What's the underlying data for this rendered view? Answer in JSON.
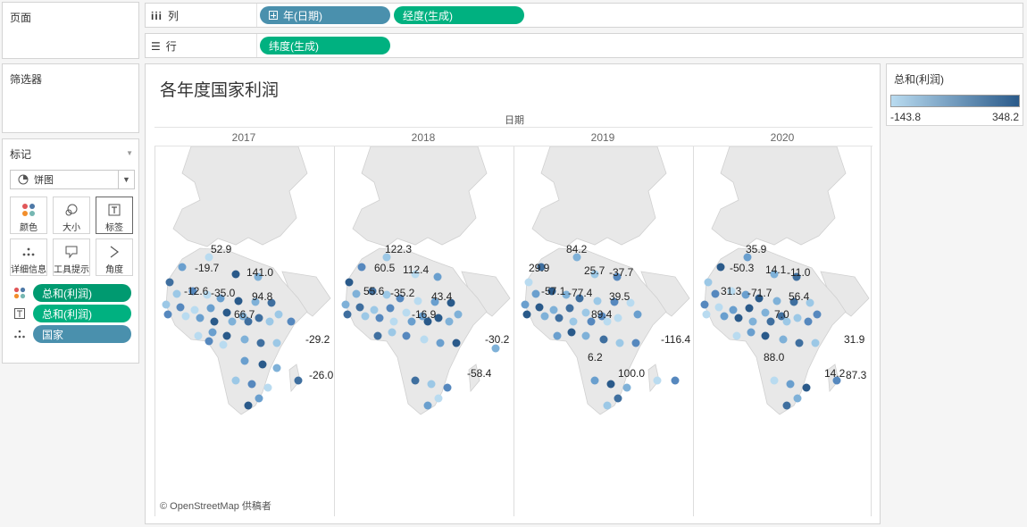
{
  "left": {
    "pages_title": "页面",
    "filters_title": "筛选器",
    "marks_title": "标记",
    "mark_type": "饼图",
    "buttons": [
      {
        "id": "color",
        "label": "颜色",
        "icon": "color-dots-icon"
      },
      {
        "id": "size",
        "label": "大小",
        "icon": "size-icon"
      },
      {
        "id": "label",
        "label": "标签",
        "icon": "text-label-icon",
        "active": true
      },
      {
        "id": "detail",
        "label": "详细信息",
        "icon": "detail-dots-icon"
      },
      {
        "id": "tooltip",
        "label": "工具提示",
        "icon": "tooltip-icon"
      },
      {
        "id": "angle",
        "label": "角度",
        "icon": "angle-icon"
      }
    ],
    "fields": [
      {
        "icon": "color-dots-icon",
        "label": "总和(利润)",
        "color": "#009a70"
      },
      {
        "icon": "text-label-icon",
        "label": "总和(利润)",
        "color": "#00b180"
      },
      {
        "icon": "detail-dots-icon",
        "label": "国家",
        "color": "#4a90ad"
      }
    ]
  },
  "shelves": {
    "columns_label": "列",
    "rows_label": "行",
    "columns_pills": [
      {
        "label": "年(日期)",
        "color": "#4a90ad",
        "plus": true
      },
      {
        "label": "经度(生成)",
        "color": "#00b180",
        "plus": false
      }
    ],
    "rows_pills": [
      {
        "label": "纬度(生成)",
        "color": "#00b180"
      }
    ]
  },
  "viz": {
    "title": "各年度国家利润",
    "column_header": "日期",
    "years": [
      "2017",
      "2018",
      "2019",
      "2020"
    ],
    "credit": "© OpenStreetMap 供稿者",
    "labels": [
      [
        "52.9",
        "-19.7",
        "141.0",
        "-12.6",
        "-35.0",
        "94.8",
        "66.7",
        "-29.2",
        "-26.0"
      ],
      [
        "122.3",
        "60.5",
        "112.4",
        "55.6",
        "-35.2",
        "43.4",
        "-16.9",
        "-30.2",
        "-58.4"
      ],
      [
        "84.2",
        "29.9",
        "25.7",
        "-37.7",
        "-57.1",
        "-77.4",
        "39.5",
        "89.4",
        "-116.4",
        "6.2",
        "100.0"
      ],
      [
        "35.9",
        "-50.3",
        "14.1",
        "-11.0",
        "31.3",
        "-71.7",
        "56.4",
        "7.0",
        "31.9",
        "88.0",
        "14.2",
        "87.3"
      ]
    ]
  },
  "legend": {
    "title": "总和(利润)",
    "min": "-143.8",
    "max": "348.2",
    "color_low": "#b9dbf0",
    "color_high": "#2a5a8a"
  }
}
